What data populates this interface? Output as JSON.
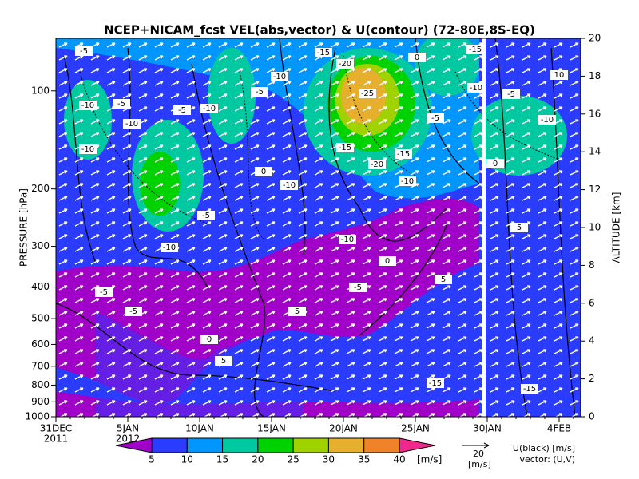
{
  "chart_data": {
    "type": "contour",
    "title": "NCEP+NICAM_fcst VEL(abs,vector) & U(contour)   (72-80E,8S-EQ)",
    "ylabel": "PRESSURE [hPa]",
    "y2label": "ALTITUDE [km]",
    "yscale": "log",
    "ylim": [
      1000,
      69
    ],
    "yticks": [
      100,
      200,
      300,
      400,
      500,
      600,
      700,
      800,
      900,
      1000
    ],
    "y2lim": [
      0,
      20
    ],
    "y2ticks": [
      0,
      2,
      4,
      6,
      8,
      10,
      12,
      14,
      16,
      18,
      20
    ],
    "xlim": [
      0,
      36.5
    ],
    "xticks": [
      {
        "value": 0,
        "label": "31DEC"
      },
      {
        "value": 5,
        "label": "5JAN"
      },
      {
        "value": 10,
        "label": "10JAN"
      },
      {
        "value": 15,
        "label": "15JAN"
      },
      {
        "value": 20,
        "label": "20JAN"
      },
      {
        "value": 25,
        "label": "25JAN"
      },
      {
        "value": 30,
        "label": "30JAN"
      },
      {
        "value": 35,
        "label": "4FEB"
      }
    ],
    "year_labels": [
      {
        "value": 0,
        "label": "2011"
      },
      {
        "value": 5,
        "label": "2012"
      }
    ],
    "colorbar": {
      "levels": [
        5,
        10,
        15,
        20,
        25,
        30,
        35,
        40
      ],
      "colors": [
        "#a000c8",
        "#2a3cff",
        "#0096ff",
        "#00c8a0",
        "#00d200",
        "#a0d200",
        "#e6af2d",
        "#f08228",
        "#f0288c"
      ],
      "unit": "[m/s]"
    },
    "vector_legend": {
      "length": 20,
      "unit": "[m/s]",
      "contour_note": "U(black) [m/s]",
      "vector_note": "vector: (U,V)"
    },
    "contour_labels": [
      "-5",
      "-10",
      "-5",
      "-5",
      "-10",
      "-10",
      "-5",
      "-10",
      "-15",
      "-20",
      "-25",
      "0",
      "-15",
      "-20",
      "-10",
      "-5",
      "-15",
      "-10",
      "-10",
      "-15",
      "-10",
      "0",
      "-5",
      "-10",
      "0",
      "-5",
      "5",
      "5",
      "0",
      "5",
      "-15",
      "-5",
      "-5",
      "0",
      "5",
      "-10",
      "-15",
      "-5",
      "10",
      "-10"
    ]
  }
}
